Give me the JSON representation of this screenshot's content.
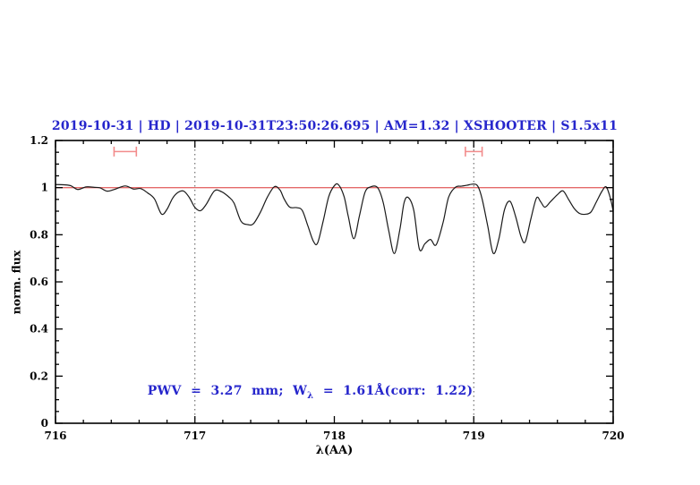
{
  "page": {
    "background": "#ffffff"
  },
  "chart_data": {
    "type": "line",
    "title": "2019-10-31 | HD | 2019-10-31T23:50:26.695 | AM=1.32 | XSHOOTER | S1.5x11",
    "title_color": "#2626cc",
    "xlabel": "λ(AA)",
    "ylabel": "norm. flux",
    "xlim": [
      716,
      720
    ],
    "ylim": [
      0,
      1.2
    ],
    "x_tick_labels": [
      "716",
      "717",
      "718",
      "719",
      "720"
    ],
    "x_major_ticks": [
      716,
      717,
      718,
      719,
      720
    ],
    "x_minor_step": 0.2,
    "y_tick_labels": [
      "0",
      "0.2",
      "0.4",
      "0.6",
      "0.8",
      "1",
      "1.2"
    ],
    "y_major_ticks": [
      0,
      0.2,
      0.4,
      0.6,
      0.8,
      1,
      1.2
    ],
    "y_minor_step": 0.05,
    "grid": "off",
    "legend": "none",
    "dotted_vlines_x": [
      717,
      719
    ],
    "dotted_vline_color": "#555555",
    "continuum_line": {
      "y": 1.0,
      "color": "#e46a6a"
    },
    "band_markers": {
      "color": "#f28b8b",
      "y": 1.153,
      "items": [
        {
          "x_from": 716.42,
          "x_to": 716.58
        },
        {
          "x_from": 718.94,
          "x_to": 719.06
        }
      ]
    },
    "annotation": {
      "text_plain": "PWV = 3.27 mm; Wλ = 1.61Å(corr: 1.22)",
      "pre": "PWV  =  3.27  mm;  W",
      "sub": "λ",
      "post": "  =  1.61Å(corr:  1.22)",
      "color": "#2626cc",
      "x": 716.55,
      "y": 0.2
    },
    "series": [
      {
        "name": "normalized-spectrum",
        "color": "#1a1a1a",
        "points": [
          [
            716.0,
            1.013
          ],
          [
            716.06,
            1.012
          ],
          [
            716.11,
            1.008
          ],
          [
            716.16,
            0.992
          ],
          [
            716.22,
            1.003
          ],
          [
            716.28,
            1.001
          ],
          [
            716.32,
            0.999
          ],
          [
            716.37,
            0.985
          ],
          [
            716.42,
            0.992
          ],
          [
            716.5,
            1.007
          ],
          [
            716.56,
            0.994
          ],
          [
            716.61,
            0.996
          ],
          [
            716.66,
            0.978
          ],
          [
            716.71,
            0.952
          ],
          [
            716.76,
            0.888
          ],
          [
            716.8,
            0.908
          ],
          [
            716.84,
            0.955
          ],
          [
            716.88,
            0.98
          ],
          [
            716.92,
            0.985
          ],
          [
            716.96,
            0.958
          ],
          [
            717.0,
            0.916
          ],
          [
            717.04,
            0.902
          ],
          [
            717.08,
            0.928
          ],
          [
            717.14,
            0.986
          ],
          [
            717.19,
            0.983
          ],
          [
            717.24,
            0.962
          ],
          [
            717.28,
            0.935
          ],
          [
            717.33,
            0.858
          ],
          [
            717.38,
            0.843
          ],
          [
            717.42,
            0.847
          ],
          [
            717.47,
            0.896
          ],
          [
            717.52,
            0.96
          ],
          [
            717.57,
            1.004
          ],
          [
            717.61,
            0.99
          ],
          [
            717.64,
            0.952
          ],
          [
            717.68,
            0.917
          ],
          [
            717.73,
            0.915
          ],
          [
            717.77,
            0.903
          ],
          [
            717.81,
            0.838
          ],
          [
            717.85,
            0.772
          ],
          [
            717.88,
            0.765
          ],
          [
            717.92,
            0.858
          ],
          [
            717.96,
            0.962
          ],
          [
            718.0,
            1.008
          ],
          [
            718.03,
            1.012
          ],
          [
            718.07,
            0.962
          ],
          [
            718.1,
            0.878
          ],
          [
            718.14,
            0.783
          ],
          [
            718.18,
            0.88
          ],
          [
            718.22,
            0.98
          ],
          [
            718.26,
            1.003
          ],
          [
            718.31,
            1.0
          ],
          [
            718.35,
            0.938
          ],
          [
            718.39,
            0.818
          ],
          [
            718.43,
            0.72
          ],
          [
            718.47,
            0.822
          ],
          [
            718.5,
            0.935
          ],
          [
            718.53,
            0.958
          ],
          [
            718.57,
            0.903
          ],
          [
            718.61,
            0.739
          ],
          [
            718.65,
            0.762
          ],
          [
            718.69,
            0.78
          ],
          [
            718.73,
            0.757
          ],
          [
            718.78,
            0.852
          ],
          [
            718.82,
            0.96
          ],
          [
            718.87,
            1.002
          ],
          [
            718.91,
            1.006
          ],
          [
            718.95,
            1.01
          ],
          [
            719.0,
            1.015
          ],
          [
            719.03,
            1.005
          ],
          [
            719.06,
            0.952
          ],
          [
            719.1,
            0.838
          ],
          [
            719.14,
            0.721
          ],
          [
            719.18,
            0.782
          ],
          [
            719.22,
            0.905
          ],
          [
            719.26,
            0.942
          ],
          [
            719.3,
            0.878
          ],
          [
            719.34,
            0.79
          ],
          [
            719.37,
            0.771
          ],
          [
            719.41,
            0.868
          ],
          [
            719.45,
            0.956
          ],
          [
            719.48,
            0.94
          ],
          [
            719.51,
            0.917
          ],
          [
            719.55,
            0.94
          ],
          [
            719.6,
            0.97
          ],
          [
            719.64,
            0.986
          ],
          [
            719.68,
            0.95
          ],
          [
            719.72,
            0.912
          ],
          [
            719.76,
            0.89
          ],
          [
            719.8,
            0.887
          ],
          [
            719.84,
            0.896
          ],
          [
            719.88,
            0.94
          ],
          [
            719.92,
            0.985
          ],
          [
            719.95,
            1.003
          ],
          [
            719.98,
            0.955
          ],
          [
            720.0,
            0.9
          ]
        ]
      }
    ]
  }
}
